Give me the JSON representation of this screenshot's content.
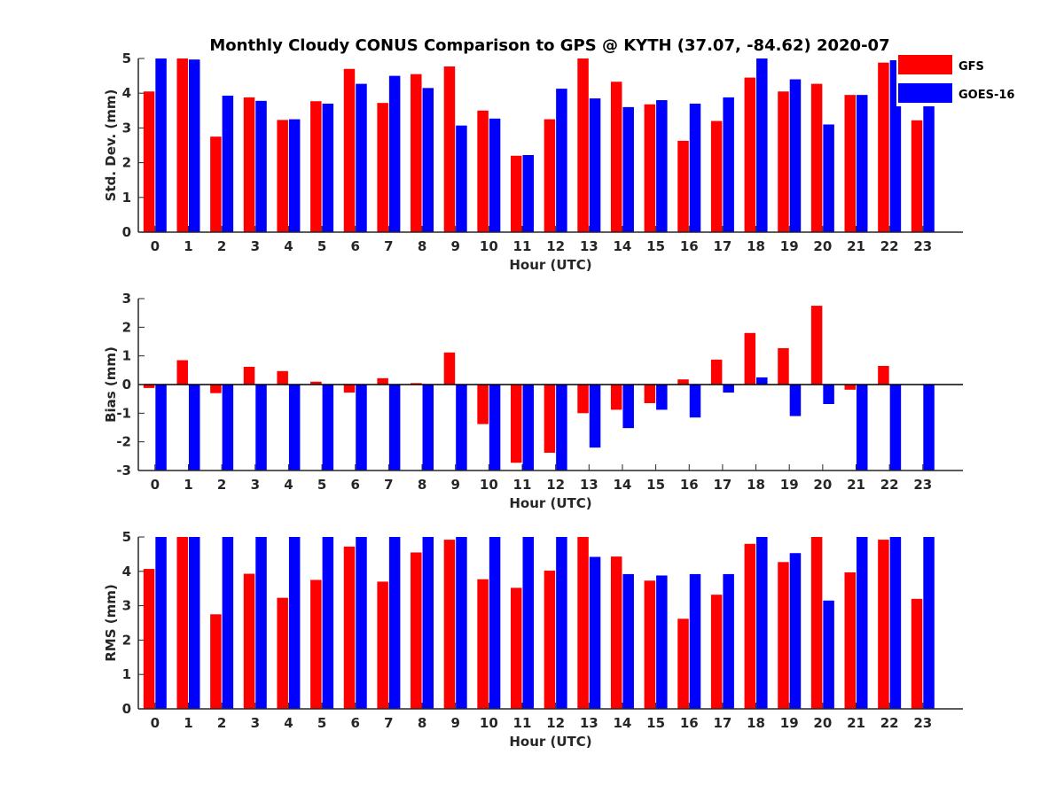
{
  "figure": {
    "title": "Monthly Cloudy CONUS Comparison to GPS @ KYTH (37.07, -84.62) 2020-07"
  },
  "legend": {
    "placement": "top-right",
    "items": [
      {
        "label": "GFS",
        "color": "#ff0000"
      },
      {
        "label": "GOES-16",
        "color": "#0000ff"
      }
    ]
  },
  "chart_data": [
    {
      "type": "bar",
      "xlabel": "Hour (UTC)",
      "ylabel": "Std. Dev. (mm)",
      "ylim": [
        0,
        5
      ],
      "yticks": [
        0,
        1,
        2,
        3,
        4,
        5
      ],
      "grid": false,
      "categories": [
        "0",
        "1",
        "2",
        "3",
        "4",
        "5",
        "6",
        "7",
        "8",
        "9",
        "10",
        "11",
        "12",
        "13",
        "14",
        "15",
        "16",
        "17",
        "18",
        "19",
        "20",
        "21",
        "22",
        "23"
      ],
      "series": [
        {
          "name": "GFS",
          "color": "#ff0000",
          "values": [
            4.05,
            5.0,
            2.75,
            3.88,
            3.23,
            3.77,
            4.7,
            3.72,
            4.55,
            4.77,
            3.5,
            2.2,
            3.25,
            5.0,
            4.33,
            3.68,
            2.63,
            3.2,
            4.45,
            4.05,
            4.27,
            3.95,
            4.88,
            3.22
          ]
        },
        {
          "name": "GOES-16",
          "color": "#0000ff",
          "values": [
            5.0,
            4.97,
            3.93,
            3.78,
            3.25,
            3.7,
            4.27,
            4.5,
            4.15,
            3.07,
            3.27,
            2.22,
            4.13,
            3.85,
            3.6,
            3.8,
            3.7,
            3.88,
            5.0,
            4.4,
            3.1,
            3.95,
            4.95,
            3.72
          ]
        }
      ]
    },
    {
      "type": "bar",
      "xlabel": "Hour (UTC)",
      "ylabel": "Bias (mm)",
      "ylim": [
        -3,
        3
      ],
      "yticks": [
        -3,
        -2,
        -1,
        0,
        1,
        2,
        3
      ],
      "grid": false,
      "categories": [
        "0",
        "1",
        "2",
        "3",
        "4",
        "5",
        "6",
        "7",
        "8",
        "9",
        "10",
        "11",
        "12",
        "13",
        "14",
        "15",
        "16",
        "17",
        "18",
        "19",
        "20",
        "21",
        "22",
        "23"
      ],
      "series": [
        {
          "name": "GFS",
          "color": "#ff0000",
          "values": [
            -0.12,
            0.85,
            -0.3,
            0.62,
            0.47,
            0.1,
            -0.28,
            0.22,
            0.05,
            1.12,
            -1.38,
            -2.73,
            -2.38,
            -1.0,
            -0.88,
            -0.65,
            0.18,
            0.87,
            1.8,
            1.27,
            2.75,
            -0.18,
            0.65,
            0.0
          ]
        },
        {
          "name": "GOES-16",
          "color": "#0000ff",
          "values": [
            -3.0,
            -3.0,
            -3.0,
            -3.0,
            -3.0,
            -3.0,
            -3.0,
            -3.0,
            -3.0,
            -3.0,
            -3.0,
            -3.0,
            -3.0,
            -2.2,
            -1.52,
            -0.88,
            -1.15,
            -0.28,
            0.25,
            -1.1,
            -0.68,
            -3.0,
            -3.0,
            -3.0
          ]
        }
      ]
    },
    {
      "type": "bar",
      "xlabel": "Hour (UTC)",
      "ylabel": "RMS (mm)",
      "ylim": [
        0,
        5
      ],
      "yticks": [
        0,
        1,
        2,
        3,
        4,
        5
      ],
      "grid": false,
      "categories": [
        "0",
        "1",
        "2",
        "3",
        "4",
        "5",
        "6",
        "7",
        "8",
        "9",
        "10",
        "11",
        "12",
        "13",
        "14",
        "15",
        "16",
        "17",
        "18",
        "19",
        "20",
        "21",
        "22",
        "23"
      ],
      "series": [
        {
          "name": "GFS",
          "color": "#ff0000",
          "values": [
            4.07,
            5.0,
            2.75,
            3.93,
            3.23,
            3.75,
            4.72,
            3.7,
            4.55,
            4.92,
            3.77,
            3.52,
            4.02,
            5.0,
            4.43,
            3.73,
            2.62,
            3.32,
            4.8,
            4.27,
            5.0,
            3.97,
            4.92,
            3.2
          ]
        },
        {
          "name": "GOES-16",
          "color": "#0000ff",
          "values": [
            5.0,
            5.0,
            5.0,
            5.0,
            5.0,
            5.0,
            5.0,
            5.0,
            5.0,
            5.0,
            5.0,
            5.0,
            5.0,
            4.42,
            3.92,
            3.88,
            3.92,
            3.92,
            5.0,
            4.53,
            3.15,
            5.0,
            5.0,
            5.0
          ]
        }
      ]
    }
  ]
}
